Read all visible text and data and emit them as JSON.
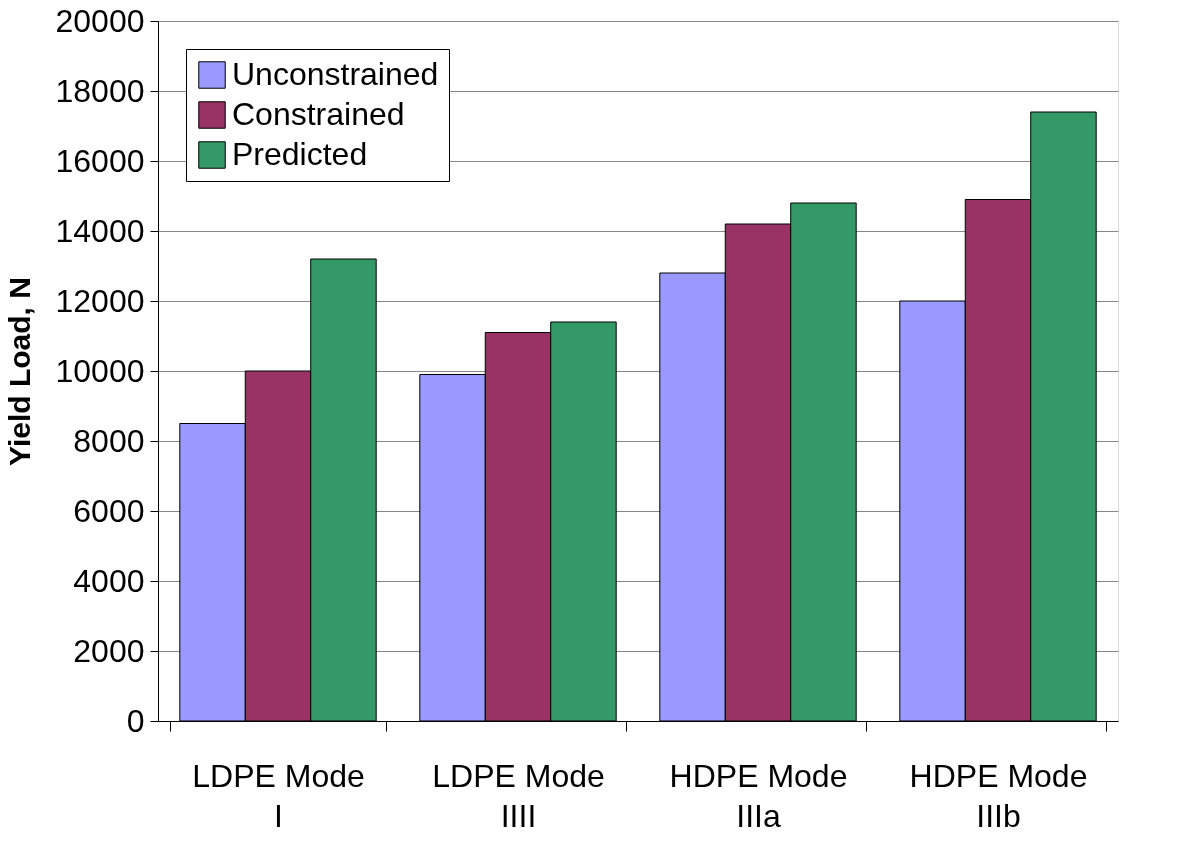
{
  "chart_data": {
    "type": "bar",
    "ylabel": "Yield Load, N",
    "categories": [
      "LDPE Mode I",
      "LDPE Mode IIII",
      "HDPE Mode IIIa",
      "HDPE Mode IIIb"
    ],
    "series": [
      {
        "name": "Unconstrained",
        "color": "#9999ff",
        "values": [
          8500,
          9900,
          12800,
          12000
        ]
      },
      {
        "name": "Constrained",
        "color": "#993366",
        "values": [
          10000,
          11100,
          14200,
          14900
        ]
      },
      {
        "name": "Predicted",
        "color": "#339966",
        "values": [
          13200,
          11400,
          14800,
          17400
        ]
      }
    ],
    "ylim": [
      0,
      20000
    ],
    "yticks": [
      0,
      2000,
      4000,
      6000,
      8000,
      10000,
      12000,
      14000,
      16000,
      18000,
      20000
    ],
    "grid": "y",
    "legend": "top left"
  }
}
